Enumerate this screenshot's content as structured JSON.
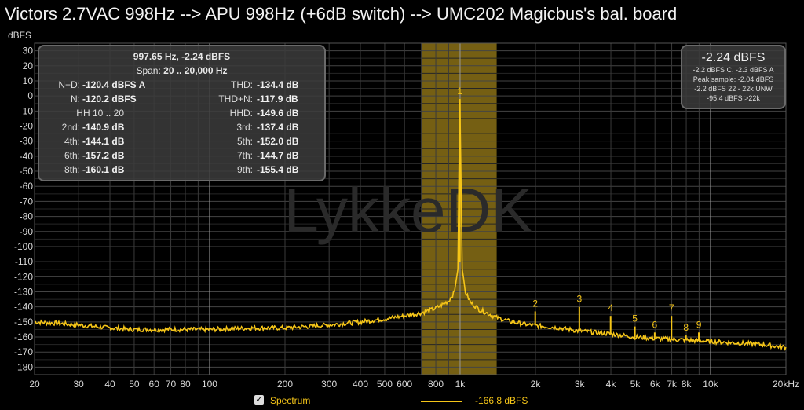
{
  "title": "Victors 2.7VAC 998Hz --> APU 998Hz (+6dB switch) --> UMC202 Magicbus's bal. board",
  "colors": {
    "trace": "#f5c518",
    "band": "#8a7016",
    "grid": "#3c3c3c",
    "background": "#000000"
  },
  "stats_panel": {
    "header1": "997.65 Hz, -2.24 dBFS",
    "span_label": "Span:",
    "span_value": "20 .. 20,000 Hz",
    "hh_label": "HH 10 .. 20",
    "left": [
      {
        "label": "N+D:",
        "value": "-120.4 dBFS A"
      },
      {
        "label": "N:",
        "value": "-120.2 dBFS"
      },
      {
        "label": "2nd:",
        "value": "-140.9 dB"
      },
      {
        "label": "4th:",
        "value": "-144.1 dB"
      },
      {
        "label": "6th:",
        "value": "-157.2 dB"
      },
      {
        "label": "8th:",
        "value": "-160.1 dB"
      }
    ],
    "right": [
      {
        "label": "THD:",
        "value": "-134.4 dB"
      },
      {
        "label": "THD+N:",
        "value": "-117.9 dB"
      },
      {
        "label": "HHD:",
        "value": "-149.6 dB"
      },
      {
        "label": "3rd:",
        "value": "-137.4 dB"
      },
      {
        "label": "5th:",
        "value": "-152.0 dB"
      },
      {
        "label": "7th:",
        "value": "-144.7 dB"
      },
      {
        "label": "9th:",
        "value": "-155.4 dB"
      }
    ]
  },
  "level_panel": {
    "main": "-2.24 dBFS",
    "lines": [
      "-2.2 dBFS C, -2.3 dBFS A",
      "Peak sample: -2.04 dBFS",
      "-2.2 dBFS 22 - 22k UNW",
      "-95.4 dBFS >22k"
    ]
  },
  "legend": {
    "checked_mark": "✓",
    "series_name": "Spectrum",
    "series_value": "-166.8 dBFS"
  },
  "chart_data": {
    "type": "line",
    "ylabel": "dBFS",
    "xscale": "log",
    "xlim": [
      20,
      20000
    ],
    "ylim": [
      -185,
      35
    ],
    "yticks": [
      30,
      20,
      10,
      0,
      -10,
      -20,
      -30,
      -40,
      -50,
      -60,
      -70,
      -80,
      -90,
      -100,
      -110,
      -120,
      -130,
      -140,
      -150,
      -160,
      -170,
      -180
    ],
    "xticks": [
      {
        "value": 20,
        "label": "20"
      },
      {
        "value": 30,
        "label": "30"
      },
      {
        "value": 40,
        "label": "40"
      },
      {
        "value": 50,
        "label": "50"
      },
      {
        "value": 60,
        "label": "60"
      },
      {
        "value": 70,
        "label": "70"
      },
      {
        "value": 80,
        "label": "80"
      },
      {
        "value": 100,
        "label": "100"
      },
      {
        "value": 200,
        "label": "200"
      },
      {
        "value": 300,
        "label": "300"
      },
      {
        "value": 400,
        "label": "400"
      },
      {
        "value": 500,
        "label": "500"
      },
      {
        "value": 600,
        "label": "600"
      },
      {
        "value": 800,
        "label": "800"
      },
      {
        "value": 1000,
        "label": "1k"
      },
      {
        "value": 2000,
        "label": "2k"
      },
      {
        "value": 3000,
        "label": "3k"
      },
      {
        "value": 4000,
        "label": "4k"
      },
      {
        "value": 5000,
        "label": "5k"
      },
      {
        "value": 6000,
        "label": "6k"
      },
      {
        "value": 7000,
        "label": "7k"
      },
      {
        "value": 8000,
        "label": "8k"
      },
      {
        "value": 10000,
        "label": "10k"
      },
      {
        "value": 20000,
        "label": "20kHz"
      }
    ],
    "highlight_band": [
      700,
      1400
    ],
    "watermark": "LykkeDK",
    "series": [
      {
        "name": "Spectrum",
        "x": [
          20,
          25,
          30,
          40,
          50,
          60,
          80,
          100,
          150,
          200,
          300,
          400,
          500,
          600,
          700,
          800,
          900,
          950,
          980,
          998,
          1020,
          1050,
          1100,
          1200,
          1400,
          1600,
          1900,
          2500,
          3000,
          4000,
          5000,
          6000,
          8000,
          10000,
          13000,
          16000,
          20000
        ],
        "values": [
          -150,
          -151,
          -152,
          -154,
          -155,
          -155,
          -155,
          -155,
          -154,
          -154,
          -152,
          -150,
          -148,
          -146,
          -144,
          -141,
          -136,
          -130,
          -115,
          -2,
          -115,
          -130,
          -137,
          -142,
          -147,
          -150,
          -152,
          -154,
          -156,
          -158,
          -160,
          -161,
          -162,
          -163,
          -164,
          -165,
          -166.8
        ]
      }
    ],
    "harmonics": [
      {
        "label": "1",
        "freq": 998,
        "level": -2
      },
      {
        "label": "2",
        "freq": 1996,
        "level": -143
      },
      {
        "label": "3",
        "freq": 2993,
        "level": -140
      },
      {
        "label": "4",
        "freq": 3991,
        "level": -146
      },
      {
        "label": "5",
        "freq": 4988,
        "level": -153
      },
      {
        "label": "6",
        "freq": 5986,
        "level": -157
      },
      {
        "label": "7",
        "freq": 6984,
        "level": -146
      },
      {
        "label": "8",
        "freq": 7981,
        "level": -159
      },
      {
        "label": "9",
        "freq": 8979,
        "level": -157
      }
    ]
  }
}
